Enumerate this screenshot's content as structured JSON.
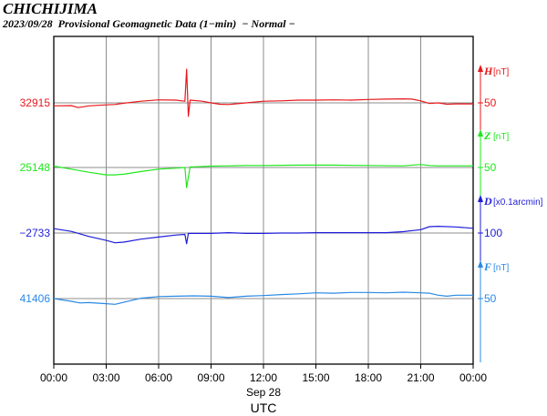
{
  "header": {
    "station": "CHICHIJIMA",
    "subtitle": "2023/09/28  Provisional Geomagnetic Data (1−min)  − Normal −"
  },
  "chart_data": {
    "type": "line",
    "title": "2023/09/28  Provisional Geomagnetic Data (1−min)  − Normal −",
    "x_ticks": [
      "00:00",
      "03:00",
      "06:00",
      "09:00",
      "12:00",
      "15:00",
      "18:00",
      "21:00",
      "00:00"
    ],
    "date_label": "Sep 28",
    "xlabel": "UTC",
    "x_range_hours": [
      0,
      24
    ],
    "grid": true,
    "series": [
      {
        "name": "H",
        "unit": "[nT]",
        "baseline": "32915",
        "scale_label": "50",
        "color": "#e8171b",
        "points": [
          [
            0,
            -9
          ],
          [
            1,
            -8
          ],
          [
            1.4,
            -14
          ],
          [
            2,
            -9
          ],
          [
            3,
            -6
          ],
          [
            3.5,
            -5
          ],
          [
            4,
            -1
          ],
          [
            5,
            5
          ],
          [
            6,
            9
          ],
          [
            7,
            8
          ],
          [
            7.5,
            5
          ],
          [
            7.6,
            100
          ],
          [
            7.7,
            -40
          ],
          [
            7.8,
            8
          ],
          [
            8.5,
            5
          ],
          [
            9,
            0
          ],
          [
            9.5,
            -4
          ],
          [
            10,
            -5
          ],
          [
            11,
            0
          ],
          [
            12,
            5
          ],
          [
            13,
            6
          ],
          [
            14,
            8
          ],
          [
            15,
            8
          ],
          [
            16,
            9
          ],
          [
            17,
            8
          ],
          [
            18,
            10
          ],
          [
            19,
            11
          ],
          [
            20,
            12
          ],
          [
            20.5,
            11
          ],
          [
            21,
            6
          ],
          [
            21.5,
            -2
          ],
          [
            22,
            0
          ],
          [
            22.5,
            -4
          ],
          [
            23,
            -3
          ],
          [
            24,
            -3
          ]
        ]
      },
      {
        "name": "Z",
        "unit": "[nT]",
        "baseline": "25148",
        "scale_label": "50",
        "color": "#1ee81b",
        "points": [
          [
            0,
            4
          ],
          [
            1,
            -5
          ],
          [
            2,
            -14
          ],
          [
            3,
            -22
          ],
          [
            3.5,
            -22
          ],
          [
            4,
            -20
          ],
          [
            5,
            -12
          ],
          [
            6,
            -5
          ],
          [
            7,
            -2
          ],
          [
            7.5,
            0
          ],
          [
            7.6,
            -60
          ],
          [
            7.8,
            2
          ],
          [
            8,
            2
          ],
          [
            9,
            4
          ],
          [
            10,
            5
          ],
          [
            11,
            6
          ],
          [
            12,
            6
          ],
          [
            14,
            7
          ],
          [
            16,
            7
          ],
          [
            18,
            6
          ],
          [
            20,
            5
          ],
          [
            21,
            9
          ],
          [
            21.5,
            6
          ],
          [
            22,
            5
          ],
          [
            23,
            5
          ],
          [
            24,
            5
          ]
        ]
      },
      {
        "name": "D",
        "unit": "[x0.1arcmin]",
        "baseline": "−2733",
        "scale_label": "100",
        "color": "#1f1cd8",
        "points": [
          [
            0,
            13
          ],
          [
            1,
            5
          ],
          [
            2,
            -10
          ],
          [
            3,
            -22
          ],
          [
            3.5,
            -29
          ],
          [
            4,
            -27
          ],
          [
            5,
            -18
          ],
          [
            6,
            -12
          ],
          [
            7,
            -6
          ],
          [
            7.5,
            -4
          ],
          [
            7.6,
            -32
          ],
          [
            7.7,
            -1
          ],
          [
            8,
            -1
          ],
          [
            9,
            -1
          ],
          [
            10,
            1
          ],
          [
            11,
            -1
          ],
          [
            12,
            -1
          ],
          [
            13,
            0
          ],
          [
            14,
            0
          ],
          [
            15,
            1
          ],
          [
            16,
            1
          ],
          [
            17,
            1
          ],
          [
            18,
            1
          ],
          [
            19,
            1
          ],
          [
            20,
            4
          ],
          [
            21,
            10
          ],
          [
            21.5,
            19
          ],
          [
            22,
            20
          ],
          [
            23,
            18
          ],
          [
            24,
            14
          ]
        ]
      },
      {
        "name": "F",
        "unit": "[nT]",
        "baseline": "41406",
        "scale_label": "50",
        "color": "#2989e5",
        "points": [
          [
            0,
            0
          ],
          [
            1,
            -8
          ],
          [
            1.5,
            -13
          ],
          [
            2,
            -12
          ],
          [
            3,
            -15
          ],
          [
            3.5,
            -17
          ],
          [
            4,
            -11
          ],
          [
            5,
            1
          ],
          [
            6,
            6
          ],
          [
            7,
            7
          ],
          [
            8,
            8
          ],
          [
            9,
            7
          ],
          [
            10,
            3
          ],
          [
            11,
            7
          ],
          [
            12,
            9
          ],
          [
            13,
            12
          ],
          [
            14,
            14
          ],
          [
            15,
            17
          ],
          [
            16,
            16
          ],
          [
            17,
            18
          ],
          [
            18,
            18
          ],
          [
            19,
            17
          ],
          [
            20,
            19
          ],
          [
            21,
            17
          ],
          [
            21.5,
            16
          ],
          [
            22,
            10
          ],
          [
            22.5,
            7
          ],
          [
            23,
            10
          ],
          [
            24,
            10
          ]
        ]
      }
    ]
  }
}
